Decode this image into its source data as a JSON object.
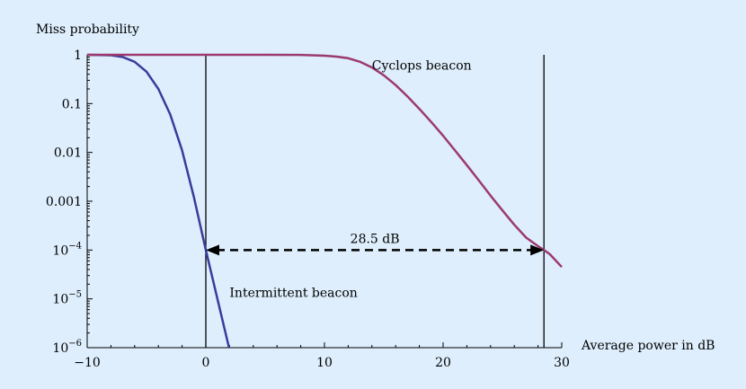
{
  "chart_data": {
    "type": "line",
    "ylabel": "Miss probability",
    "xlabel": "Average power in dB",
    "y_scale": "log",
    "xlim": [
      -10,
      30
    ],
    "ylim": [
      1e-06,
      1
    ],
    "grid": false,
    "x_ticks": [
      {
        "value": -10,
        "label": "−10"
      },
      {
        "value": 0,
        "label": "0"
      },
      {
        "value": 10,
        "label": "10"
      },
      {
        "value": 20,
        "label": "20"
      },
      {
        "value": 30,
        "label": "30"
      }
    ],
    "y_ticks": [
      {
        "value": 1,
        "label": "1"
      },
      {
        "value": 0.1,
        "label": "0.1"
      },
      {
        "value": 0.01,
        "label": "0.01"
      },
      {
        "value": 0.001,
        "label": "0.001"
      },
      {
        "value": 0.0001,
        "base": "10",
        "exp": "−4"
      },
      {
        "value": 1e-05,
        "base": "10",
        "exp": "−5"
      },
      {
        "value": 1e-06,
        "base": "10",
        "exp": "−6"
      }
    ],
    "series": [
      {
        "name": "Intermittent beacon",
        "color": "#3b3b9c",
        "x": [
          -10,
          -8,
          -7,
          -6,
          -5,
          -4,
          -3,
          -2,
          -1,
          0,
          1,
          2
        ],
        "y": [
          1,
          0.98,
          0.9,
          0.72,
          0.45,
          0.2,
          0.06,
          0.011,
          0.0012,
          0.0001,
          9.5e-06,
          9e-07
        ]
      },
      {
        "name": "Cyclops beacon",
        "color": "#9b3a6e",
        "x": [
          -10,
          0,
          5,
          8,
          10,
          11,
          12,
          13,
          14,
          15,
          16,
          17,
          18,
          19,
          20,
          21,
          22,
          23,
          24,
          25,
          26,
          27,
          28,
          28.5,
          29,
          30
        ],
        "y": [
          1,
          1,
          1,
          0.995,
          0.96,
          0.92,
          0.85,
          0.72,
          0.55,
          0.38,
          0.24,
          0.14,
          0.078,
          0.042,
          0.022,
          0.011,
          0.0055,
          0.0027,
          0.0013,
          0.00065,
          0.00033,
          0.00018,
          0.00012,
          0.0001,
          8.2e-05,
          4.5e-05
        ]
      }
    ],
    "vertical_lines": [
      0,
      28.5
    ],
    "arrow": {
      "from": 0,
      "to": 28.5,
      "y": 0.0001,
      "label": "28.5 dB"
    },
    "annotations": [
      {
        "text": "Cyclops beacon",
        "x": 14,
        "y": 0.5
      },
      {
        "text": "Intermittent beacon",
        "x": 2,
        "y": 1.1e-05
      }
    ]
  }
}
